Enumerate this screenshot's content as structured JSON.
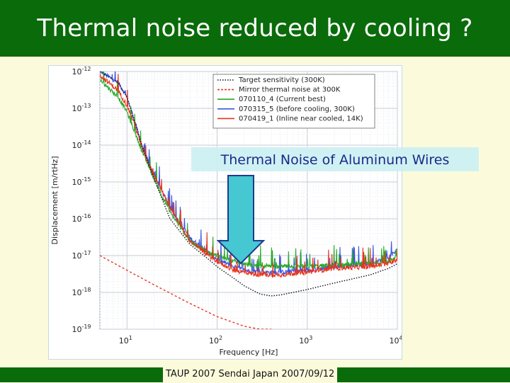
{
  "slide": {
    "title": "Thermal noise reduced by cooling ?",
    "footer": "TAUP 2007 Sendai Japan 2007/09/12",
    "callout": "Thermal Noise of Aluminum Wires"
  },
  "colors": {
    "header_bg": "#0a6b0a",
    "slide_bg": "#fbfbdc",
    "callout_bg": "#ccf0f2",
    "arrow_fill": "#46c8d2",
    "arrow_edge": "#1f3a8c"
  },
  "chart_data": {
    "type": "line",
    "xlabel": "Frequency [Hz]",
    "ylabel": "Displacement [m/rtHz]",
    "x_scale": "log",
    "y_scale": "log",
    "xlim": [
      5,
      10000
    ],
    "ylim": [
      1e-19,
      1e-12
    ],
    "grid": true,
    "legend_position": "top-right",
    "x_ticks": [
      {
        "value": 10,
        "base": "10",
        "exp": "1"
      },
      {
        "value": 100,
        "base": "10",
        "exp": "2"
      },
      {
        "value": 1000,
        "base": "10",
        "exp": "3"
      },
      {
        "value": 10000,
        "base": "10",
        "exp": "4"
      }
    ],
    "y_ticks": [
      {
        "value": 1e-12,
        "base": "10",
        "exp": "-12"
      },
      {
        "value": 1e-13,
        "base": "10",
        "exp": "-13"
      },
      {
        "value": 1e-14,
        "base": "10",
        "exp": "-14"
      },
      {
        "value": 1e-15,
        "base": "10",
        "exp": "-15"
      },
      {
        "value": 1e-16,
        "base": "10",
        "exp": "-16"
      },
      {
        "value": 1e-17,
        "base": "10",
        "exp": "-17"
      },
      {
        "value": 1e-18,
        "base": "10",
        "exp": "-18"
      },
      {
        "value": 1e-19,
        "base": "10",
        "exp": "-19"
      }
    ],
    "series": [
      {
        "name": "070315_5 (before cooling, 300K)",
        "color": "#3d55e0",
        "style": "solid",
        "noisy": true,
        "x": [
          5,
          8,
          10,
          12,
          15,
          20,
          30,
          50,
          80,
          100,
          150,
          200,
          300,
          500,
          1000,
          2000,
          5000,
          8000,
          10000
        ],
        "y": [
          1e-12,
          5e-13,
          2e-13,
          5e-14,
          8e-15,
          1.5e-15,
          2e-16,
          3e-17,
          1.2e-17,
          8e-18,
          5e-18,
          4e-18,
          3.5e-18,
          3.5e-18,
          4e-18,
          5e-18,
          6e-18,
          9e-18,
          1.4e-17
        ]
      },
      {
        "name": "070110_4 (Current best)",
        "color": "#2aa82a",
        "style": "solid",
        "noisy": true,
        "x": [
          5,
          8,
          10,
          12,
          15,
          20,
          30,
          50,
          80,
          100,
          150,
          200,
          300,
          500,
          1000,
          2000,
          5000,
          8000,
          10000
        ],
        "y": [
          6e-13,
          2e-13,
          8e-14,
          2.5e-14,
          6e-15,
          1.2e-15,
          1.5e-16,
          2.5e-17,
          1.2e-17,
          1e-17,
          7e-18,
          6e-18,
          5e-18,
          5e-18,
          5e-18,
          5.5e-18,
          6e-18,
          7e-18,
          1e-17
        ]
      },
      {
        "name": "070419_1 (Inline near cooled, 14K)",
        "color": "#e8321a",
        "style": "solid",
        "noisy": true,
        "x": [
          5,
          8,
          10,
          12,
          15,
          20,
          30,
          50,
          80,
          100,
          150,
          200,
          300,
          500,
          1000,
          2000,
          5000,
          8000,
          10000
        ],
        "y": [
          8e-13,
          3e-13,
          1.2e-13,
          4e-14,
          7e-15,
          1.5e-15,
          2e-16,
          2.5e-17,
          1e-17,
          7e-18,
          4e-18,
          3.5e-18,
          3e-18,
          3e-18,
          3.5e-18,
          4.5e-18,
          5e-18,
          6e-18,
          8e-18
        ]
      },
      {
        "name": "Target sensitivity (300K)",
        "color": "#111111",
        "style": "dotted",
        "noisy": false,
        "x": [
          5,
          8,
          10,
          12,
          15,
          20,
          30,
          50,
          80,
          100,
          150,
          200,
          300,
          400,
          500,
          700,
          1000,
          2000,
          5000,
          8000,
          10000
        ],
        "y": [
          1e-12,
          5e-13,
          2e-13,
          5e-14,
          8e-15,
          1.2e-15,
          1e-16,
          2e-17,
          8e-18,
          5e-18,
          2.5e-18,
          1.5e-18,
          9e-19,
          8e-19,
          8.5e-19,
          1e-18,
          1.2e-18,
          1.8e-18,
          3e-18,
          4.5e-18,
          6e-18
        ]
      },
      {
        "name": "Mirror thermal noise at 300K",
        "color": "#e8321a",
        "style": "dashed",
        "noisy": false,
        "x": [
          5,
          10,
          20,
          50,
          100,
          200,
          300,
          400
        ],
        "y": [
          1e-17,
          4e-18,
          1.6e-18,
          5e-19,
          2.2e-19,
          1.2e-19,
          1e-19,
          1e-19
        ]
      }
    ]
  }
}
